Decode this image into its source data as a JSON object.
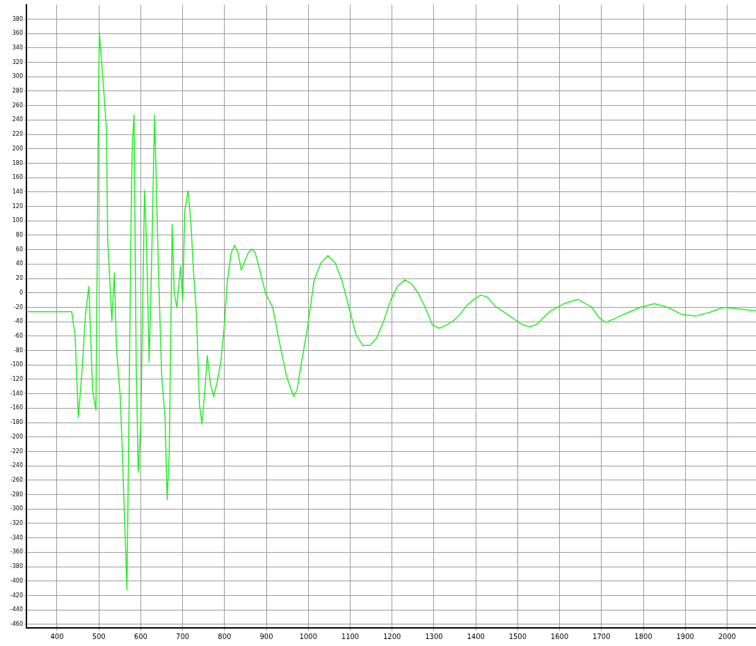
{
  "chart_data": {
    "type": "line",
    "x": [
      327,
      418,
      435,
      443,
      451,
      460,
      468,
      476,
      485,
      493,
      498,
      501,
      506,
      511,
      518,
      521,
      526,
      531,
      537,
      542,
      551,
      556,
      562,
      567,
      572,
      577,
      580,
      584,
      589,
      594,
      600,
      609,
      614,
      620,
      625,
      633,
      642,
      650,
      658,
      663,
      668,
      675,
      680,
      686,
      695,
      700,
      705,
      713,
      720,
      726,
      733,
      740,
      746,
      753,
      759,
      766,
      774,
      782,
      791,
      799,
      807,
      816,
      824,
      832,
      840,
      849,
      857,
      865,
      873,
      882,
      890,
      898,
      915,
      931,
      948,
      965,
      973,
      981,
      998,
      1014,
      1031,
      1047,
      1064,
      1080,
      1097,
      1114,
      1130,
      1147,
      1163,
      1180,
      1196,
      1213,
      1230,
      1246,
      1263,
      1279,
      1296,
      1312,
      1329,
      1346,
      1362,
      1378,
      1395,
      1412,
      1428,
      1445,
      1511,
      1528,
      1545,
      1578,
      1610,
      1644,
      1677,
      1694,
      1710,
      1727,
      1760,
      1793,
      1826,
      1859,
      1892,
      1925,
      1958,
      1991,
      2024,
      2069
    ],
    "series": [
      {
        "color": "#22ee22",
        "values": [
          -26,
          -26,
          -26,
          -58,
          -173,
          -106,
          -30,
          9,
          -135,
          -163,
          195,
          362,
          324,
          286,
          228,
          75,
          18,
          -39,
          28,
          -77,
          -144,
          -221,
          -326,
          -412,
          -163,
          114,
          209,
          247,
          -96,
          -249,
          -182,
          142,
          66,
          -96,
          18,
          247,
          37,
          -116,
          -173,
          -287,
          -221,
          95,
          -1,
          -20,
          37,
          -11,
          114,
          142,
          95,
          28,
          -30,
          -154,
          -182,
          -135,
          -87,
          -125,
          -144,
          -125,
          -96,
          -49,
          18,
          56,
          66,
          56,
          32,
          45,
          56,
          61,
          56,
          37,
          18,
          -1,
          -20,
          -68,
          -116,
          -144,
          -135,
          -106,
          -49,
          18,
          42,
          52,
          42,
          18,
          -20,
          -58,
          -73,
          -73,
          -63,
          -39,
          -11,
          9,
          18,
          13,
          -1,
          -20,
          -44,
          -49,
          -45,
          -39,
          -30,
          -18,
          -9,
          -3,
          -6,
          -18,
          -44,
          -47,
          -44,
          -25,
          -15,
          -9,
          -20,
          -34,
          -41,
          -37,
          -28,
          -20,
          -15,
          -20,
          -30,
          -32,
          -27,
          -20,
          -22,
          -25
        ]
      }
    ],
    "xlim": [
      327,
      2069
    ],
    "ylim": [
      -465,
      400
    ],
    "xticks": [
      400,
      500,
      600,
      700,
      800,
      900,
      1000,
      1100,
      1200,
      1300,
      1400,
      1500,
      1600,
      1700,
      1800,
      1900,
      2000
    ],
    "yticks": [
      -460,
      -440,
      -420,
      -400,
      -380,
      -360,
      -340,
      -320,
      -300,
      -280,
      -260,
      -240,
      -220,
      -200,
      -180,
      -160,
      -140,
      -120,
      -100,
      -80,
      -60,
      -40,
      -20,
      0,
      20,
      40,
      60,
      80,
      100,
      120,
      140,
      160,
      180,
      200,
      220,
      240,
      260,
      280,
      300,
      320,
      340,
      360,
      380
    ],
    "grid": true,
    "marker": "none",
    "line_style": "solid",
    "legend": false
  }
}
